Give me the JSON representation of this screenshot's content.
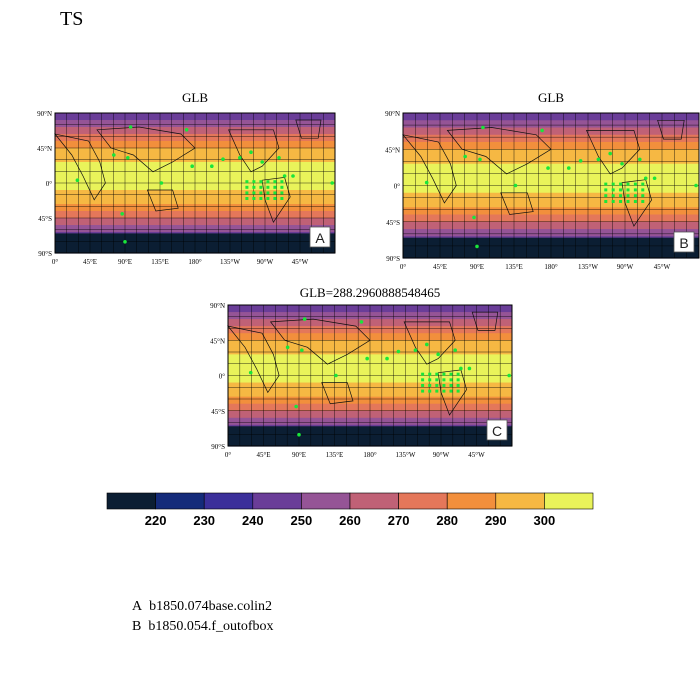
{
  "figure": {
    "variable": "TS",
    "panels": [
      {
        "id": "A",
        "title": "GLB",
        "label": "A"
      },
      {
        "id": "B",
        "title": "GLB",
        "label": "B"
      },
      {
        "id": "C",
        "title": "GLB=288.2960888548465",
        "label": "C"
      }
    ],
    "lat_ticks": [
      "90°N",
      "45°N",
      "0°",
      "45°S",
      "90°S"
    ],
    "lon_ticks": [
      "0°",
      "45°E",
      "90°E",
      "135°E",
      "180°",
      "135°W",
      "90°W",
      "45°W"
    ]
  },
  "colorbar": {
    "colors": [
      "#0b1e33",
      "#142b7a",
      "#3b2f9a",
      "#6a3d98",
      "#955496",
      "#c06176",
      "#e4775a",
      "#f28f3c",
      "#f6b843",
      "#e9f35a"
    ],
    "tick_labels": [
      "220",
      "230",
      "240",
      "250",
      "260",
      "270",
      "280",
      "290",
      "300"
    ]
  },
  "legend": [
    {
      "key": "A",
      "text": "b1850.074base.colin2"
    },
    {
      "key": "B",
      "text": "b1850.054.f_outofbox"
    }
  ]
}
